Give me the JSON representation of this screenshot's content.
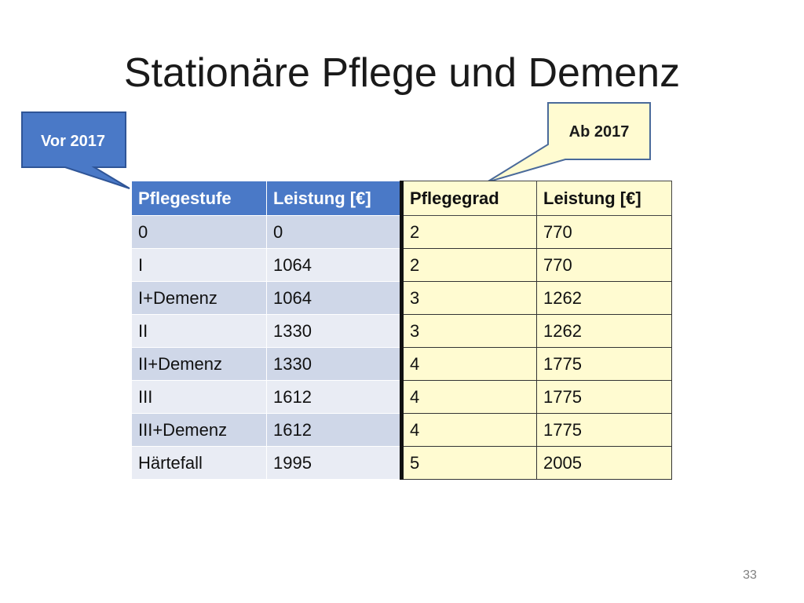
{
  "slide": {
    "title": "Stationäre Pflege und Demenz",
    "page_number": "33"
  },
  "callouts": {
    "before": "Vor 2017",
    "after": "Ab 2017"
  },
  "table": {
    "headers": [
      "Pflegestufe",
      "Leistung [€]",
      "Pflegegrad",
      "Leistung [€]"
    ],
    "rows": [
      [
        "0",
        "0",
        "2",
        "770"
      ],
      [
        "I",
        "1064",
        "2",
        "770"
      ],
      [
        "I+Demenz",
        "1064",
        "3",
        "1262"
      ],
      [
        "II",
        "1330",
        "3",
        "1262"
      ],
      [
        "II+Demenz",
        "1330",
        "4",
        "1775"
      ],
      [
        "III",
        "1612",
        "4",
        "1775"
      ],
      [
        "III+Demenz",
        "1612",
        "4",
        "1775"
      ],
      [
        "Härtefall",
        "1995",
        "5",
        "2005"
      ]
    ]
  },
  "colors": {
    "header_blue": "#4a79c7",
    "row_blue_dark": "#cfd7e8",
    "row_blue_light": "#e9ecf4",
    "yellow": "#fffbd1"
  }
}
